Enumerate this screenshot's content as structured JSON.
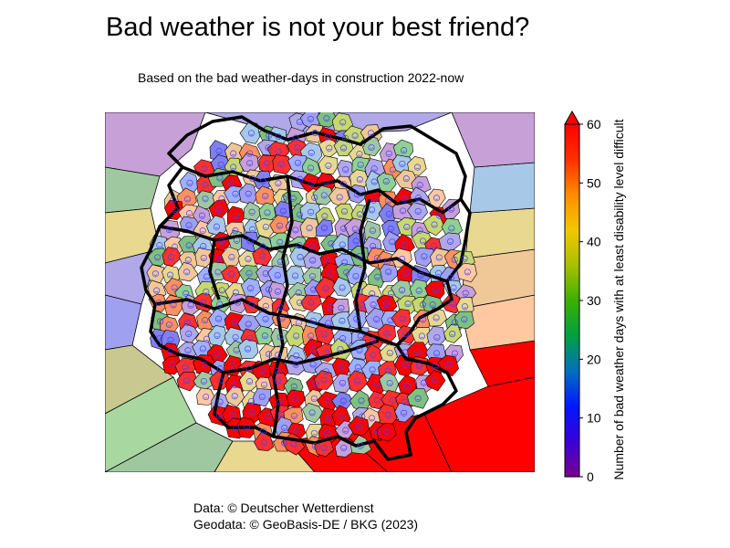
{
  "title": "Bad weather is not your best friend?",
  "subtitle": "Based on the bad weather-days in construction 2022-now",
  "colorbar": {
    "label": "Number of bad weather days with at least disability level difficult",
    "ticks": [
      "0",
      "10",
      "20",
      "30",
      "40",
      "50",
      "60"
    ],
    "min": 0,
    "max": 60,
    "extend": "max",
    "colormap": "rainbow (purple-blue-green-yellow-orange-red)",
    "colors": [
      "#7b0090",
      "#3b00d8",
      "#0018ff",
      "#0070c0",
      "#00a040",
      "#3cb000",
      "#a8c000",
      "#f0c800",
      "#ff8c00",
      "#ff3000",
      "#ff0000"
    ]
  },
  "map": {
    "type": "voronoi-choropleth",
    "region": "Germany (federal states outlined)",
    "marker": "smiley-icon",
    "background_cells": [
      "#c8a0d8",
      "#b0a8e8",
      "#a8c8e8",
      "#a0c8a0",
      "#e8d890",
      "#f0c898",
      "#ffc8a0",
      "#a0a0f0",
      "#ff0000"
    ]
  },
  "credits": {
    "data": "Data: © Deutscher Wetterdienst",
    "geodata": "Geodata: © GeoBasis-DE / BKG (2023)"
  }
}
